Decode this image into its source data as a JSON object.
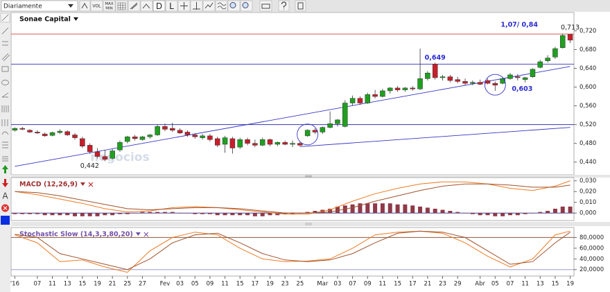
{
  "toolbar": {
    "period": "Diariamente",
    "buttons": [
      "VOL",
      "MAX",
      "MIN",
      "D",
      "L"
    ]
  },
  "left_toolbar": {
    "text": "A"
  },
  "chart_data": [
    {
      "type": "candlestick",
      "title": "Sonae Capital",
      "title_color": "#111111",
      "note": "1,07/ 0,84",
      "watermark": "negocios",
      "xlim": [
        -0.5,
        74.5
      ],
      "ylim": [
        0.413,
        0.759
      ],
      "yticks": [
        {
          "value": 0.44,
          "label": "0,440"
        },
        {
          "value": 0.48,
          "label": "0,480"
        },
        {
          "value": 0.52,
          "label": "0,520"
        },
        {
          "value": 0.56,
          "label": "0,560"
        },
        {
          "value": 0.6,
          "label": "0,600"
        },
        {
          "value": 0.64,
          "label": "0,640"
        },
        {
          "value": 0.68,
          "label": "0,680"
        },
        {
          "value": 0.72,
          "label": "0,720"
        }
      ],
      "up_color": "#1fa01f",
      "down_color": "#c81e2a",
      "ohlc": [
        [
          0.508,
          0.514,
          0.505,
          0.512
        ],
        [
          0.512,
          0.515,
          0.508,
          0.51
        ],
        [
          0.508,
          0.51,
          0.502,
          0.504
        ],
        [
          0.504,
          0.508,
          0.5,
          0.502
        ],
        [
          0.5,
          0.503,
          0.494,
          0.496
        ],
        [
          0.497,
          0.505,
          0.495,
          0.503
        ],
        [
          0.503,
          0.51,
          0.5,
          0.506
        ],
        [
          0.505,
          0.508,
          0.496,
          0.498
        ],
        [
          0.498,
          0.502,
          0.488,
          0.492
        ],
        [
          0.49,
          0.494,
          0.47,
          0.474
        ],
        [
          0.476,
          0.48,
          0.458,
          0.462
        ],
        [
          0.462,
          0.47,
          0.448,
          0.452
        ],
        [
          0.452,
          0.466,
          0.442,
          0.446
        ],
        [
          0.448,
          0.468,
          0.446,
          0.464
        ],
        [
          0.466,
          0.486,
          0.462,
          0.482
        ],
        [
          0.484,
          0.496,
          0.48,
          0.494
        ],
        [
          0.494,
          0.498,
          0.486,
          0.49
        ],
        [
          0.488,
          0.496,
          0.486,
          0.494
        ],
        [
          0.494,
          0.5,
          0.49,
          0.498
        ],
        [
          0.498,
          0.52,
          0.496,
          0.516
        ],
        [
          0.516,
          0.522,
          0.506,
          0.51
        ],
        [
          0.512,
          0.524,
          0.504,
          0.508
        ],
        [
          0.508,
          0.512,
          0.5,
          0.502
        ],
        [
          0.504,
          0.508,
          0.494,
          0.498
        ],
        [
          0.498,
          0.502,
          0.49,
          0.494
        ],
        [
          0.492,
          0.5,
          0.488,
          0.496
        ],
        [
          0.496,
          0.5,
          0.484,
          0.488
        ],
        [
          0.49,
          0.494,
          0.472,
          0.476
        ],
        [
          0.478,
          0.496,
          0.46,
          0.492
        ],
        [
          0.49,
          0.494,
          0.458,
          0.47
        ],
        [
          0.472,
          0.492,
          0.468,
          0.488
        ],
        [
          0.488,
          0.492,
          0.476,
          0.48
        ],
        [
          0.48,
          0.488,
          0.472,
          0.476
        ],
        [
          0.476,
          0.492,
          0.474,
          0.488
        ],
        [
          0.488,
          0.49,
          0.474,
          0.478
        ],
        [
          0.478,
          0.484,
          0.474,
          0.482
        ],
        [
          0.482,
          0.486,
          0.476,
          0.478
        ],
        [
          0.478,
          0.486,
          0.472,
          0.48
        ],
        [
          0.48,
          0.484,
          0.474,
          0.476
        ],
        [
          0.496,
          0.51,
          0.494,
          0.508
        ],
        [
          0.508,
          0.512,
          0.5,
          0.504
        ],
        [
          0.504,
          0.516,
          0.5,
          0.514
        ],
        [
          0.514,
          0.548,
          0.512,
          0.522
        ],
        [
          0.522,
          0.532,
          0.516,
          0.53
        ],
        [
          0.516,
          0.572,
          0.514,
          0.566
        ],
        [
          0.566,
          0.582,
          0.56,
          0.576
        ],
        [
          0.576,
          0.58,
          0.562,
          0.566
        ],
        [
          0.566,
          0.588,
          0.564,
          0.584
        ],
        [
          0.584,
          0.594,
          0.576,
          0.58
        ],
        [
          0.58,
          0.596,
          0.578,
          0.592
        ],
        [
          0.592,
          0.6,
          0.586,
          0.598
        ],
        [
          0.598,
          0.602,
          0.59,
          0.594
        ],
        [
          0.594,
          0.6,
          0.59,
          0.598
        ],
        [
          0.598,
          0.602,
          0.592,
          0.596
        ],
        [
          0.596,
          0.682,
          0.594,
          0.618
        ],
        [
          0.618,
          0.634,
          0.614,
          0.63
        ],
        [
          0.649,
          0.652,
          0.616,
          0.62
        ],
        [
          0.62,
          0.626,
          0.614,
          0.622
        ],
        [
          0.622,
          0.626,
          0.61,
          0.614
        ],
        [
          0.616,
          0.622,
          0.608,
          0.612
        ],
        [
          0.612,
          0.618,
          0.604,
          0.608
        ],
        [
          0.608,
          0.614,
          0.604,
          0.61
        ],
        [
          0.61,
          0.616,
          0.604,
          0.606
        ],
        [
          0.614,
          0.618,
          0.606,
          0.608
        ],
        [
          0.608,
          0.612,
          0.592,
          0.604
        ],
        [
          0.608,
          0.622,
          0.606,
          0.618
        ],
        [
          0.618,
          0.63,
          0.616,
          0.626
        ],
        [
          0.622,
          0.628,
          0.614,
          0.62
        ],
        [
          0.616,
          0.622,
          0.61,
          0.62
        ],
        [
          0.622,
          0.64,
          0.62,
          0.638
        ],
        [
          0.642,
          0.658,
          0.64,
          0.654
        ],
        [
          0.656,
          0.668,
          0.652,
          0.662
        ],
        [
          0.664,
          0.686,
          0.66,
          0.682
        ],
        [
          0.684,
          0.714,
          0.682,
          0.71
        ],
        [
          0.712,
          0.713,
          0.694,
          0.7
        ]
      ],
      "hlines": [
        {
          "value": 0.713,
          "color": "#d04040"
        },
        {
          "value": 0.649,
          "color": "#3535b5"
        },
        {
          "value": 0.52,
          "color": "#3535b5"
        }
      ],
      "trendlines": [
        {
          "x": [
            0,
            74
          ],
          "y": [
            0.431,
            0.644
          ],
          "color": "#3535c5"
        },
        {
          "x": [
            38,
            74
          ],
          "y": [
            0.473,
            0.514
          ],
          "color": "#3535c5"
        }
      ],
      "circles": [
        {
          "index": 39,
          "value": 0.499,
          "color": "#3535c5"
        },
        {
          "index": 64,
          "value": 0.605,
          "color": "#3535c5"
        }
      ],
      "annotations": [
        {
          "label": "0,713",
          "value": 0.713,
          "index": 74,
          "position": "above",
          "color": "#222222"
        },
        {
          "label": "0,649",
          "value": 0.649,
          "index": 56,
          "position": "above",
          "color": "#2a2ad0"
        },
        {
          "label": "0,603",
          "value": 0.603,
          "index": 64,
          "position": "right",
          "color": "#2a2ad0"
        },
        {
          "label": "0,442",
          "value": 0.442,
          "index": 12,
          "position": "below",
          "color": "#222222"
        }
      ]
    },
    {
      "type": "macd",
      "title": "MACD (12,26,9)",
      "title_color": "#a03030",
      "xlim": [
        -0.5,
        74.5
      ],
      "ylim": [
        -0.007,
        0.033
      ],
      "yticks": [
        {
          "value": 0,
          "label": "0,000"
        },
        {
          "value": 0.01,
          "label": "0,010"
        },
        {
          "value": 0.02,
          "label": "0,020"
        },
        {
          "value": 0.03,
          "label": "0,030"
        }
      ],
      "histogram_color": "#8e3a4a",
      "histogram": [
        -0.001,
        -0.001,
        -0.001,
        -0.001,
        -0.002,
        -0.002,
        -0.002,
        -0.002,
        -0.003,
        -0.003,
        -0.003,
        -0.003,
        -0.002,
        -0.002,
        -0.001,
        -0.001,
        0,
        0.001,
        0.001,
        0.001,
        0.001,
        0.001,
        0,
        0,
        -0.001,
        -0.001,
        -0.001,
        -0.002,
        -0.002,
        -0.002,
        -0.002,
        -0.002,
        -0.003,
        -0.003,
        -0.002,
        -0.002,
        -0.001,
        -0.001,
        0,
        0.001,
        0.002,
        0.003,
        0.004,
        0.006,
        0.007,
        0.008,
        0.009,
        0.009,
        0.009,
        0.009,
        0.009,
        0.008,
        0.008,
        0.007,
        0.006,
        0.005,
        0.004,
        0.003,
        0.002,
        0.001,
        0,
        -0.001,
        -0.002,
        -0.002,
        -0.003,
        -0.003,
        -0.002,
        -0.002,
        -0.001,
        0,
        0.001,
        0.002,
        0.004,
        0.006,
        0.006
      ],
      "x": [
        0,
        3,
        6,
        9,
        12,
        15,
        18,
        21,
        24,
        27,
        30,
        33,
        36,
        39,
        42,
        45,
        48,
        51,
        54,
        57,
        60,
        63,
        66,
        69,
        72,
        74
      ],
      "series": [
        {
          "color": "#ee7a22",
          "values": [
            0.02,
            0.017,
            0.013,
            0.009,
            0.004,
            0.001,
            0.002,
            0.005,
            0.006,
            0.005,
            0.003,
            0.001,
            -0.001,
            -0.001,
            0.003,
            0.011,
            0.018,
            0.023,
            0.027,
            0.029,
            0.029,
            0.027,
            0.023,
            0.021,
            0.025,
            0.03
          ]
        },
        {
          "color": "#a0522d",
          "values": [
            0.02,
            0.019,
            0.016,
            0.012,
            0.008,
            0.004,
            0.003,
            0.004,
            0.005,
            0.005,
            0.004,
            0.002,
            0,
            0,
            0.001,
            0.005,
            0.011,
            0.016,
            0.021,
            0.025,
            0.027,
            0.027,
            0.026,
            0.024,
            0.024,
            0.026
          ]
        }
      ]
    },
    {
      "type": "stochastic",
      "title": "Stochastic Slow (14,3,3,80,20)",
      "title_color": "#7050a8",
      "xlim": [
        -0.5,
        74.5
      ],
      "ylim": [
        8,
        98.7
      ],
      "yticks": [
        {
          "value": 20,
          "label": "20,0000"
        },
        {
          "value": 40,
          "label": "40,0000"
        },
        {
          "value": 60,
          "label": "60,0000"
        },
        {
          "value": 80,
          "label": "80,0000"
        }
      ],
      "levels": [
        {
          "value": 80,
          "color": "#8b5a3a"
        },
        {
          "value": 20,
          "color": "#9a9ad0"
        }
      ],
      "x": [
        0,
        3,
        6,
        9,
        12,
        15,
        18,
        21,
        24,
        27,
        30,
        33,
        36,
        39,
        42,
        45,
        48,
        51,
        54,
        57,
        60,
        63,
        66,
        69,
        72,
        74
      ],
      "series": [
        {
          "color": "#ee7a22",
          "values": [
            85,
            70,
            35,
            38,
            25,
            15,
            55,
            80,
            90,
            85,
            60,
            40,
            35,
            36,
            40,
            60,
            85,
            90,
            92,
            88,
            70,
            45,
            25,
            40,
            85,
            92
          ]
        },
        {
          "color": "#a0522d",
          "values": [
            86,
            80,
            50,
            40,
            30,
            20,
            40,
            70,
            85,
            88,
            70,
            50,
            38,
            35,
            38,
            50,
            70,
            88,
            92,
            90,
            80,
            55,
            30,
            35,
            70,
            90
          ]
        }
      ],
      "xticks": [
        {
          "value": 0,
          "label": "'16"
        },
        {
          "value": 3,
          "label": "07"
        },
        {
          "value": 5,
          "label": "11"
        },
        {
          "value": 7,
          "label": "13"
        },
        {
          "value": 9,
          "label": "15"
        },
        {
          "value": 11,
          "label": "19"
        },
        {
          "value": 13,
          "label": "21"
        },
        {
          "value": 15,
          "label": "25"
        },
        {
          "value": 17,
          "label": "27"
        },
        {
          "value": 20,
          "label": "Fev"
        },
        {
          "value": 22,
          "label": "03"
        },
        {
          "value": 24,
          "label": "05"
        },
        {
          "value": 26,
          "label": "09"
        },
        {
          "value": 28,
          "label": "11"
        },
        {
          "value": 30,
          "label": "15"
        },
        {
          "value": 32,
          "label": "17"
        },
        {
          "value": 34,
          "label": "19"
        },
        {
          "value": 36,
          "label": "23"
        },
        {
          "value": 38,
          "label": "25"
        },
        {
          "value": 41,
          "label": "Mar"
        },
        {
          "value": 43,
          "label": "03"
        },
        {
          "value": 45,
          "label": "07"
        },
        {
          "value": 47,
          "label": "09"
        },
        {
          "value": 49,
          "label": "11"
        },
        {
          "value": 51,
          "label": "15"
        },
        {
          "value": 53,
          "label": "17"
        },
        {
          "value": 55,
          "label": "21"
        },
        {
          "value": 57,
          "label": "23"
        },
        {
          "value": 59,
          "label": "29"
        },
        {
          "value": 62,
          "label": "Abr"
        },
        {
          "value": 64,
          "label": "05"
        },
        {
          "value": 66,
          "label": "07"
        },
        {
          "value": 68,
          "label": "11"
        },
        {
          "value": 70,
          "label": "13"
        },
        {
          "value": 72,
          "label": "15"
        },
        {
          "value": 74,
          "label": "19"
        }
      ]
    }
  ]
}
